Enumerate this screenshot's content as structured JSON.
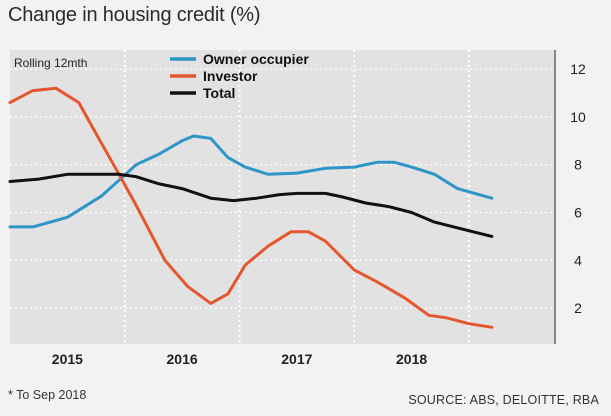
{
  "chart_data": {
    "type": "line",
    "title": "Change in housing credit (%)",
    "subtitle": "Rolling 12mth",
    "footnote": "* To Sep 2018",
    "source": "SOURCE: ABS, DELOITTE, RBA",
    "x_categories": [
      "2015",
      "2016",
      "2017",
      "2018"
    ],
    "xlim": [
      2014.5,
      2019.25
    ],
    "ylim": [
      0.5,
      12.8
    ],
    "yticks": [
      2,
      4,
      6,
      8,
      10,
      12
    ],
    "ytick_labels": [
      "2",
      "4",
      "6",
      "8",
      "10",
      "12"
    ],
    "grid": true,
    "legend_position": "top",
    "series": [
      {
        "name": "Owner occupier",
        "color": "#2e95c8",
        "x": [
          2014.5,
          2014.7,
          2015.0,
          2015.3,
          2015.6,
          2015.8,
          2016.0,
          2016.1,
          2016.25,
          2016.4,
          2016.55,
          2016.75,
          2017.0,
          2017.25,
          2017.5,
          2017.6,
          2017.7,
          2017.85,
          2018.0,
          2018.2,
          2018.4,
          2018.7
        ],
        "y": [
          5.4,
          5.4,
          5.8,
          6.7,
          8.0,
          8.45,
          9.0,
          9.2,
          9.1,
          8.3,
          7.9,
          7.6,
          7.65,
          7.85,
          7.9,
          8.0,
          8.1,
          8.1,
          7.9,
          7.6,
          7.0,
          6.6
        ]
      },
      {
        "name": "Investor",
        "color": "#e4572e",
        "x": [
          2014.5,
          2014.7,
          2014.9,
          2015.1,
          2015.25,
          2015.45,
          2015.6,
          2015.85,
          2016.05,
          2016.25,
          2016.4,
          2016.55,
          2016.75,
          2016.95,
          2017.1,
          2017.25,
          2017.5,
          2017.7,
          2017.95,
          2018.15,
          2018.3,
          2018.5,
          2018.7
        ],
        "y": [
          10.6,
          11.1,
          11.2,
          10.6,
          9.3,
          7.6,
          6.3,
          4.0,
          2.9,
          2.2,
          2.6,
          3.8,
          4.6,
          5.2,
          5.2,
          4.8,
          3.6,
          3.1,
          2.4,
          1.7,
          1.6,
          1.35,
          1.2
        ]
      },
      {
        "name": "Total",
        "color": "#111111",
        "x": [
          2014.5,
          2014.75,
          2015.0,
          2015.2,
          2015.45,
          2015.6,
          2015.8,
          2016.0,
          2016.25,
          2016.45,
          2016.65,
          2016.85,
          2017.0,
          2017.25,
          2017.4,
          2017.6,
          2017.8,
          2018.0,
          2018.2,
          2018.45,
          2018.7
        ],
        "y": [
          7.3,
          7.4,
          7.6,
          7.6,
          7.6,
          7.5,
          7.2,
          7.0,
          6.6,
          6.5,
          6.6,
          6.75,
          6.8,
          6.8,
          6.65,
          6.4,
          6.25,
          6.0,
          5.6,
          5.3,
          5.0
        ]
      }
    ]
  }
}
